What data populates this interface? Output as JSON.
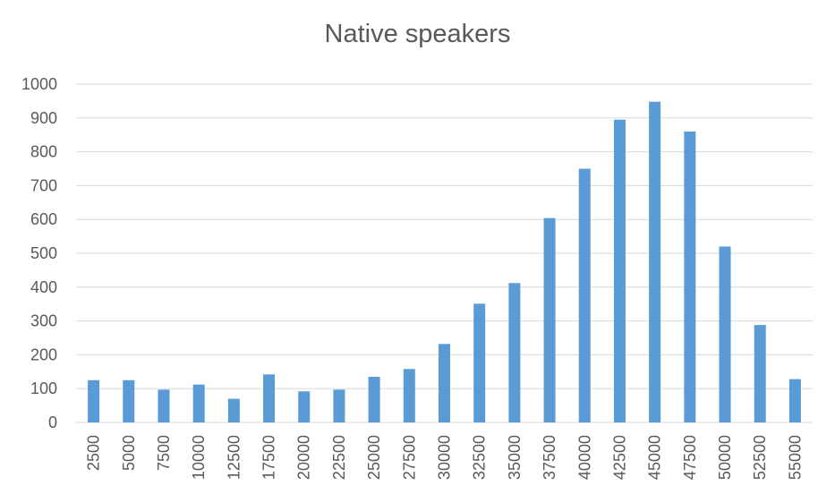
{
  "chart_data": {
    "type": "bar",
    "title": "Native speakers",
    "xlabel": "",
    "ylabel": "",
    "ylim": [
      0,
      1000
    ],
    "yticks": [
      0,
      100,
      200,
      300,
      400,
      500,
      600,
      700,
      800,
      900,
      1000
    ],
    "grid": true,
    "categories": [
      "2500",
      "5000",
      "7500",
      "10000",
      "12500",
      "17500",
      "20000",
      "22500",
      "25000",
      "27500",
      "30000",
      "32500",
      "35000",
      "37500",
      "40000",
      "42500",
      "45000",
      "47500",
      "50000",
      "52500",
      "55000"
    ],
    "values": [
      125,
      125,
      97,
      112,
      70,
      142,
      92,
      97,
      135,
      158,
      232,
      351,
      412,
      604,
      750,
      895,
      948,
      860,
      520,
      288,
      128
    ],
    "bar_color": "#5b9bd5"
  }
}
